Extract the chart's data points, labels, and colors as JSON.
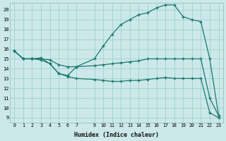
{
  "xlabel": "Humidex (Indice chaleur)",
  "bg_color": "#cce8e8",
  "line_color": "#1a7a6e",
  "grid_color": "#99cccc",
  "xlim": [
    -0.5,
    23.5
  ],
  "ylim": [
    8.5,
    20.7
  ],
  "xticks": [
    0,
    1,
    2,
    3,
    4,
    5,
    6,
    7,
    9,
    10,
    11,
    12,
    13,
    14,
    15,
    16,
    17,
    18,
    19,
    20,
    21,
    22,
    23
  ],
  "yticks": [
    9,
    10,
    11,
    12,
    13,
    14,
    15,
    16,
    17,
    18,
    19,
    20
  ],
  "line1_x": [
    0,
    1,
    2,
    3,
    4,
    5,
    6,
    7,
    9,
    10,
    11,
    12,
    13,
    14,
    15,
    16,
    17,
    18,
    19,
    20,
    21,
    22,
    23
  ],
  "line1_y": [
    15.8,
    15.0,
    15.0,
    15.1,
    14.5,
    13.5,
    13.3,
    14.2,
    15.0,
    16.3,
    17.5,
    18.5,
    19.0,
    19.5,
    19.7,
    20.2,
    20.5,
    20.5,
    19.3,
    19.0,
    18.8,
    15.0,
    9.2
  ],
  "line2_x": [
    0,
    1,
    2,
    3,
    4,
    5,
    6,
    7,
    9,
    10,
    11,
    12,
    13,
    14,
    15,
    16,
    17,
    18,
    19,
    20,
    21,
    22,
    23
  ],
  "line2_y": [
    15.8,
    15.0,
    15.0,
    15.0,
    14.9,
    14.4,
    14.2,
    14.2,
    14.3,
    14.4,
    14.5,
    14.6,
    14.7,
    14.8,
    15.0,
    15.0,
    15.0,
    15.0,
    15.0,
    15.0,
    15.0,
    11.0,
    9.2
  ],
  "line3_x": [
    0,
    1,
    2,
    3,
    4,
    5,
    6,
    7,
    9,
    10,
    11,
    12,
    13,
    14,
    15,
    16,
    17,
    18,
    19,
    20,
    21,
    22,
    23
  ],
  "line3_y": [
    15.8,
    15.0,
    15.0,
    14.9,
    14.5,
    13.5,
    13.2,
    13.0,
    12.9,
    12.8,
    12.7,
    12.7,
    12.8,
    12.8,
    12.9,
    13.0,
    13.1,
    13.0,
    13.0,
    13.0,
    13.0,
    9.5,
    9.0
  ]
}
